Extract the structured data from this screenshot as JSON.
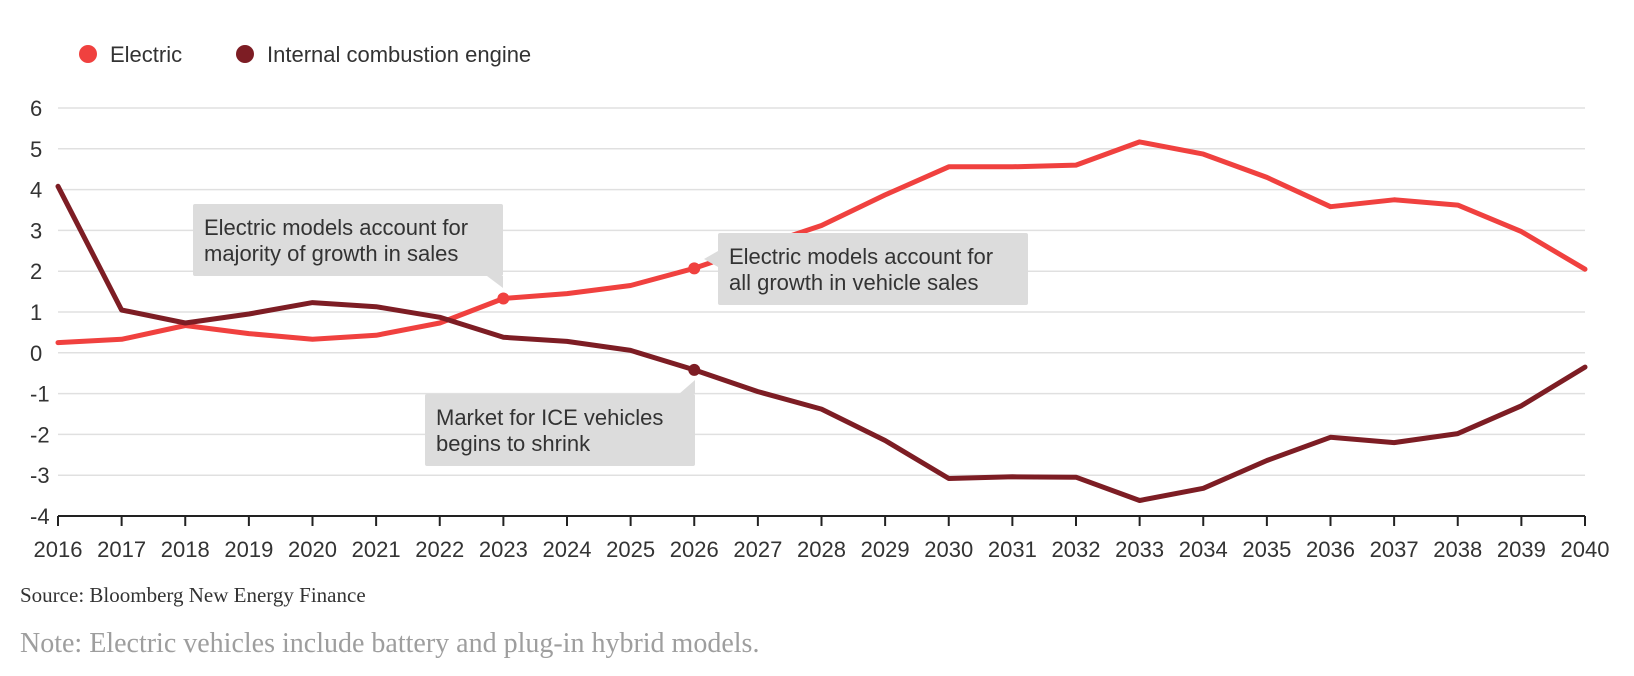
{
  "chart_data": {
    "type": "line",
    "x": [
      2016,
      2017,
      2018,
      2019,
      2020,
      2021,
      2022,
      2023,
      2024,
      2025,
      2026,
      2027,
      2028,
      2029,
      2030,
      2031,
      2032,
      2033,
      2034,
      2035,
      2036,
      2037,
      2038,
      2039,
      2040
    ],
    "series": [
      {
        "name": "Electric",
        "color": "#f0413f",
        "values": [
          0.25,
          0.33,
          0.67,
          0.47,
          0.33,
          0.43,
          0.73,
          1.33,
          1.45,
          1.65,
          2.07,
          2.6,
          3.12,
          3.87,
          4.56,
          4.56,
          4.6,
          5.17,
          4.87,
          4.3,
          3.58,
          3.75,
          3.62,
          2.97,
          2.05
        ]
      },
      {
        "name": "Internal combustion engine",
        "color": "#7d1d24",
        "values": [
          4.08,
          1.05,
          0.73,
          0.95,
          1.23,
          1.13,
          0.87,
          0.38,
          0.28,
          0.06,
          -0.42,
          -0.95,
          -1.38,
          -2.15,
          -3.08,
          -3.04,
          -3.05,
          -3.62,
          -3.32,
          -2.64,
          -2.07,
          -2.2,
          -1.98,
          -1.3,
          -0.35
        ]
      }
    ],
    "ylim": [
      -4,
      6
    ],
    "yticks": [
      6,
      5,
      4,
      3,
      2,
      1,
      0,
      -1,
      -2,
      -3,
      -4
    ],
    "grid": true,
    "legend": "top-left",
    "annotations": [
      {
        "lines": [
          "Electric models account for",
          "majority of growth in sales"
        ],
        "x": 2023,
        "series": "Electric"
      },
      {
        "lines": [
          "Electric models account for",
          "all growth in vehicle sales"
        ],
        "x": 2026,
        "series": "Electric"
      },
      {
        "lines": [
          "Market for ICE vehicles",
          "begins to shrink"
        ],
        "x": 2026,
        "series": "Internal combustion engine"
      }
    ]
  },
  "source": "Source: Bloomberg New Energy Finance",
  "note": "Note: Electric vehicles include battery and plug-in hybrid models."
}
